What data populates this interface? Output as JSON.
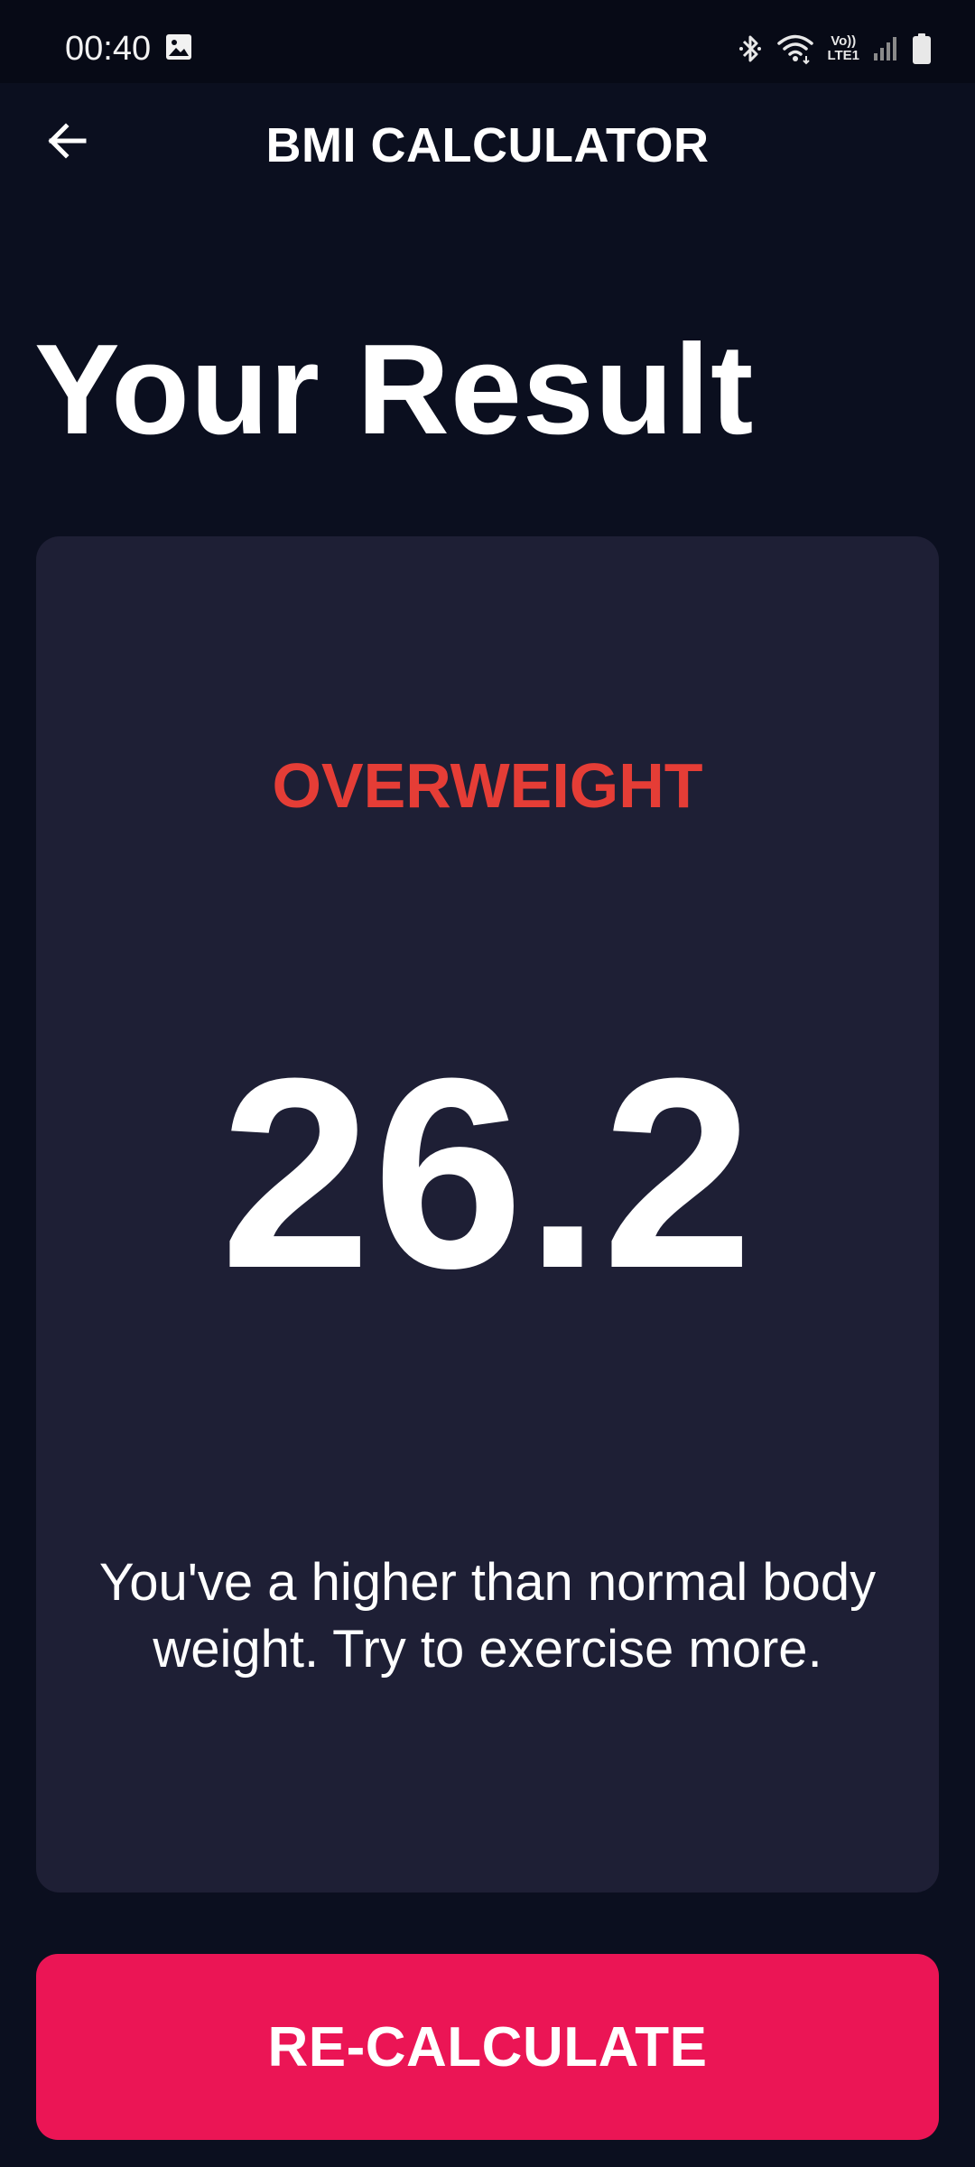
{
  "status_bar": {
    "time": "00:40",
    "volte_label_top": "Vo))",
    "volte_label_bottom": "LTE1"
  },
  "icons": {
    "status_gallery": "image-icon",
    "status_bluetooth": "bluetooth-icon",
    "status_wifi": "wifi-icon",
    "status_signal": "signal-icon",
    "status_battery": "battery-icon",
    "back": "arrow-left-icon"
  },
  "app_bar": {
    "title": "BMI CALCULATOR"
  },
  "page": {
    "title": "Your Result"
  },
  "result": {
    "status": "OVERWEIGHT",
    "bmi_value": "26.2",
    "message": "You've a higher than normal body weight. Try to exercise more."
  },
  "actions": {
    "recalculate_label": "RE-CALCULATE"
  },
  "colors": {
    "background": "#0b0f1f",
    "card": "#1e1f35",
    "status_red": "#e53d36",
    "button": "#eb1555"
  }
}
